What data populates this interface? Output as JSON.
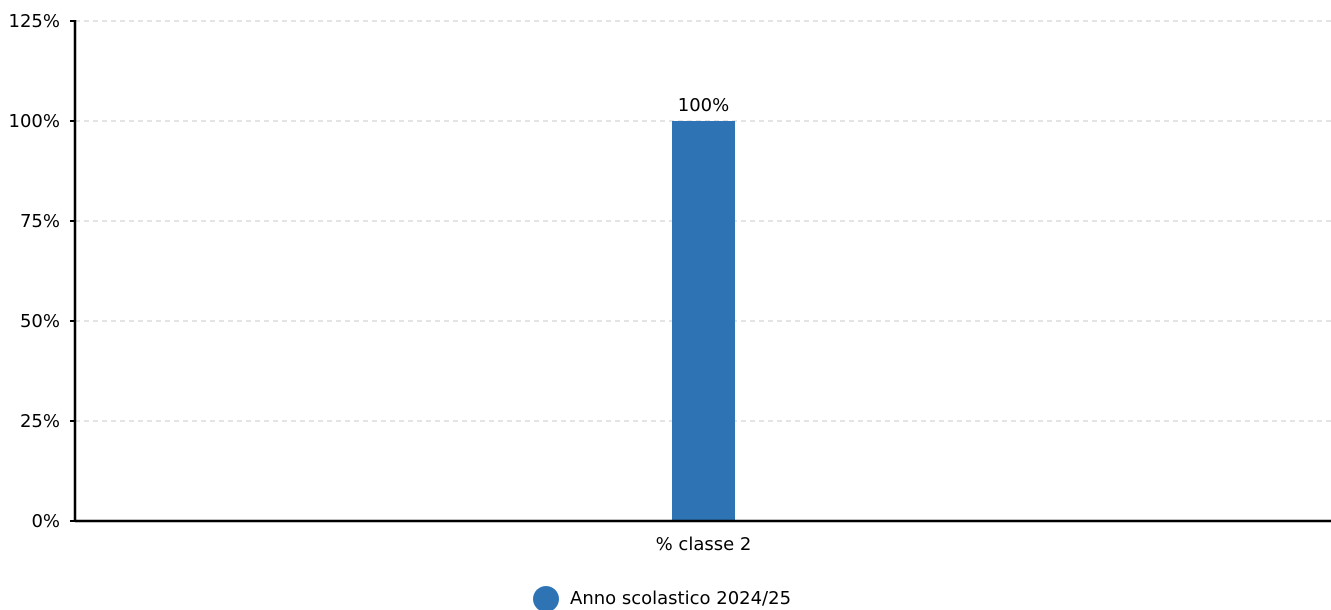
{
  "chart_data": {
    "type": "bar",
    "categories": [
      "% classe 2"
    ],
    "series": [
      {
        "name": "Anno scolastico 2024/25",
        "values": [
          100
        ],
        "value_labels": [
          "100%"
        ],
        "color": "#2e74b5"
      }
    ],
    "ylim": [
      0,
      125
    ],
    "yticks": [
      0,
      25,
      50,
      75,
      100,
      125
    ],
    "ytick_labels": [
      "0%",
      "25%",
      "50%",
      "75%",
      "100%",
      "125%"
    ],
    "grid": true,
    "legend_position": "bottom-center",
    "colors": {
      "grid": "#c8c8c8",
      "axis": "#000000"
    }
  }
}
